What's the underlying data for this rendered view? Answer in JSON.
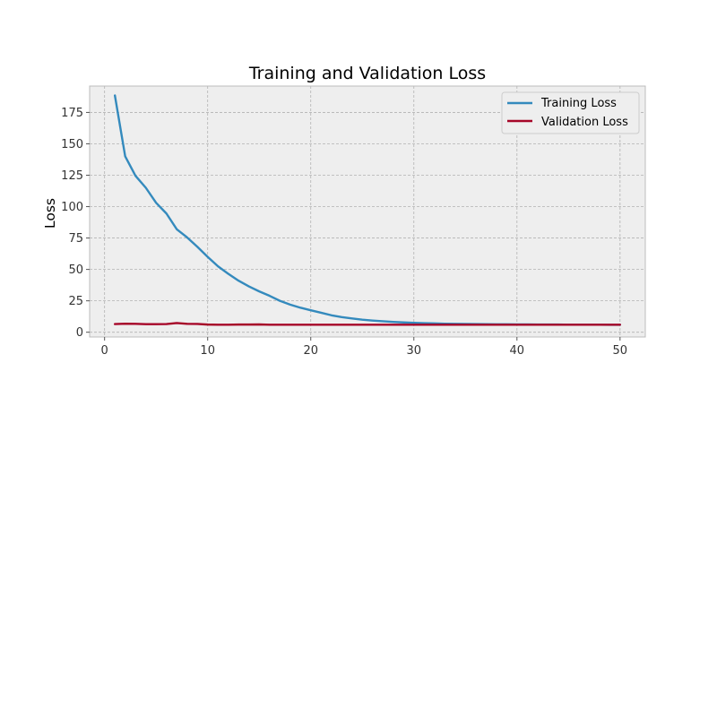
{
  "chart_data": {
    "type": "line",
    "title": "Training and Validation Loss",
    "xlabel": "",
    "ylabel": "Loss",
    "xlim": [
      -1.45,
      52.45
    ],
    "ylim": [
      -3.8,
      196.0
    ],
    "x_ticks": [
      0,
      10,
      20,
      30,
      40,
      50
    ],
    "y_ticks": [
      0,
      25,
      50,
      75,
      100,
      125,
      150,
      175
    ],
    "grid": true,
    "legend_position": "top-right",
    "x": [
      1,
      2,
      3,
      4,
      5,
      6,
      7,
      8,
      9,
      10,
      11,
      12,
      13,
      14,
      15,
      16,
      17,
      18,
      19,
      20,
      21,
      22,
      23,
      24,
      25,
      26,
      27,
      28,
      29,
      30,
      31,
      32,
      33,
      34,
      35,
      36,
      37,
      38,
      39,
      40,
      41,
      42,
      43,
      44,
      45,
      46,
      47,
      48,
      49,
      50
    ],
    "series": [
      {
        "name": "Training Loss",
        "color": "#348abd",
        "values": [
          188.5,
          140.0,
          124.5,
          115.0,
          103.0,
          94.5,
          82.0,
          75.5,
          68.0,
          60.0,
          52.5,
          46.5,
          41.0,
          36.5,
          32.5,
          29.0,
          25.0,
          22.0,
          19.5,
          17.5,
          15.5,
          13.5,
          12.0,
          11.0,
          10.0,
          9.3,
          8.7,
          8.2,
          7.8,
          7.5,
          7.2,
          7.0,
          6.8,
          6.7,
          6.6,
          6.5,
          6.4,
          6.3,
          6.3,
          6.2,
          6.2,
          6.1,
          6.1,
          6.1,
          6.0,
          6.0,
          6.0,
          6.0,
          5.9,
          5.9
        ]
      },
      {
        "name": "Validation Loss",
        "color": "#a60628",
        "values": [
          6.5,
          6.8,
          6.7,
          6.4,
          6.4,
          6.5,
          7.3,
          6.7,
          6.6,
          6.1,
          6.0,
          6.0,
          6.1,
          6.1,
          6.2,
          6.0,
          6.0,
          6.0,
          6.0,
          6.0,
          6.0,
          6.0,
          6.0,
          6.0,
          6.0,
          6.0,
          6.0,
          6.0,
          6.0,
          6.0,
          6.0,
          6.0,
          6.0,
          6.0,
          6.0,
          6.0,
          6.0,
          6.0,
          6.0,
          6.0,
          6.0,
          6.0,
          6.0,
          6.0,
          6.0,
          6.0,
          6.0,
          6.0,
          6.0,
          6.0
        ]
      }
    ]
  },
  "style": {
    "plot_background": "#eeeeee",
    "grid_color": "#b2b2b2",
    "frame_color": "#bcbcbc",
    "legend_background": "#eeeeee",
    "legend_border": "#cccccc"
  }
}
